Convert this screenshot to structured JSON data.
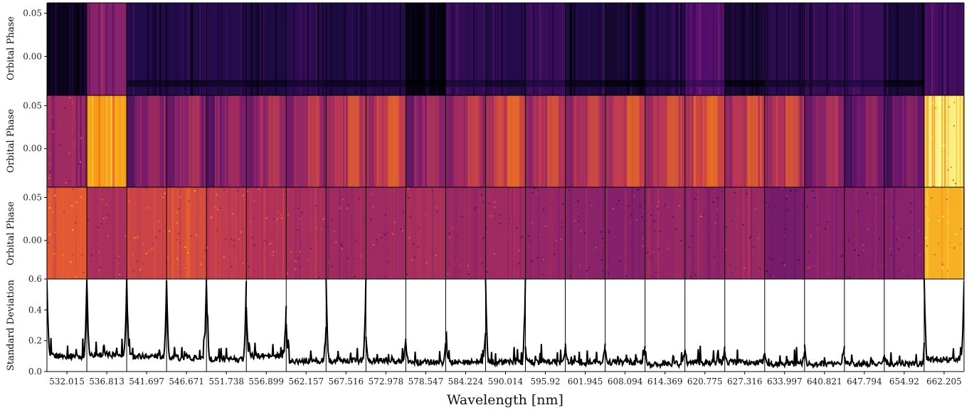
{
  "chart_data": {
    "type": "heatmap",
    "xlabel": "Wavelength [nm]",
    "panels": [
      {
        "ylabel": "Orbital Phase",
        "yticks": [
          "0.05",
          "0.00"
        ],
        "ytick_values": [
          0.05,
          0.0
        ]
      },
      {
        "ylabel": "Orbital Phase",
        "yticks": [
          "0.05",
          "0.00"
        ],
        "ytick_values": [
          0.05,
          0.0
        ]
      },
      {
        "ylabel": "Orbital Phase",
        "yticks": [
          "0.05",
          "0.00"
        ],
        "ytick_values": [
          0.05,
          0.0
        ]
      },
      {
        "ylabel": "Standard Deviation",
        "yticks": [
          "0.6",
          "0.4",
          "0.2",
          "0.0"
        ],
        "ytick_values": [
          0.6,
          0.4,
          0.2,
          0.0
        ],
        "ylim": [
          0.0,
          0.6
        ],
        "type": "line"
      }
    ],
    "orders": [
      "532.015",
      "536.813",
      "541.697",
      "546.671",
      "551.738",
      "556.899",
      "562.157",
      "567.516",
      "572.978",
      "578.547",
      "584.224",
      "590.014",
      "595.92",
      "601.945",
      "608.094",
      "614.369",
      "620.775",
      "627.316",
      "633.997",
      "640.821",
      "647.794",
      "654.92",
      "662.205"
    ],
    "row1_intensity": [
      0.05,
      0.45,
      0.15,
      0.14,
      0.16,
      0.14,
      0.18,
      0.14,
      0.17,
      0.03,
      0.2,
      0.16,
      0.22,
      0.14,
      0.1,
      0.17,
      0.3,
      0.1,
      0.17,
      0.2,
      0.22,
      0.12,
      0.25
    ],
    "row2_intensity": [
      0.52,
      0.88,
      0.4,
      0.45,
      0.42,
      0.48,
      0.5,
      0.6,
      0.62,
      0.45,
      0.52,
      0.65,
      0.58,
      0.55,
      0.62,
      0.6,
      0.65,
      0.6,
      0.58,
      0.45,
      0.38,
      0.35,
      0.98
    ],
    "row3_intensity": [
      0.72,
      0.55,
      0.65,
      0.68,
      0.62,
      0.58,
      0.55,
      0.52,
      0.52,
      0.55,
      0.5,
      0.52,
      0.48,
      0.46,
      0.44,
      0.48,
      0.47,
      0.5,
      0.4,
      0.45,
      0.44,
      0.45,
      0.9
    ],
    "std_baseline": [
      0.1,
      0.11,
      0.1,
      0.09,
      0.08,
      0.1,
      0.07,
      0.07,
      0.07,
      0.06,
      0.06,
      0.06,
      0.06,
      0.06,
      0.06,
      0.05,
      0.06,
      0.06,
      0.05,
      0.05,
      0.05,
      0.05,
      0.08
    ],
    "std_edge_peak": [
      0.58,
      0.6,
      0.6,
      0.6,
      0.58,
      0.42,
      0.3,
      0.6,
      0.22,
      0.2,
      0.25,
      0.6,
      0.16,
      0.18,
      0.15,
      0.15,
      0.15,
      0.12,
      0.12,
      0.18,
      0.1,
      0.1,
      0.6
    ]
  }
}
